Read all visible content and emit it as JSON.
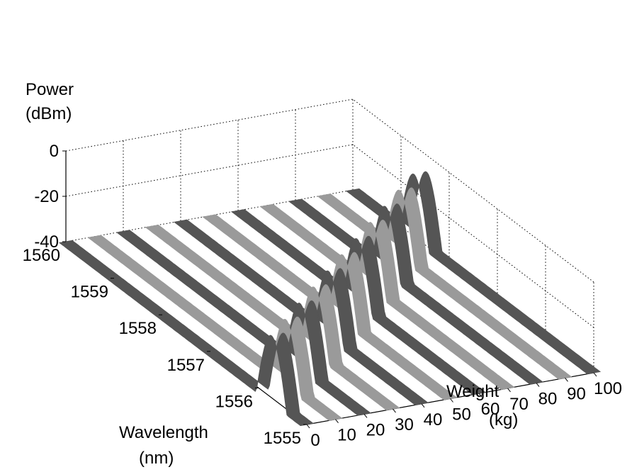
{
  "chart_data": {
    "type": "waterfall-3d",
    "title": "",
    "zlabel": [
      "Power",
      "(dBm)"
    ],
    "xlabel": [
      "Weight",
      "(kg)"
    ],
    "ylabel": [
      "Wavelength",
      "(nm)"
    ],
    "x_ticks": [
      "0",
      "10",
      "20",
      "30",
      "40",
      "50",
      "60",
      "70",
      "80",
      "90",
      "100"
    ],
    "y_ticks": [
      "1555",
      "1556",
      "1557",
      "1558",
      "1559",
      "1560"
    ],
    "z_ticks": [
      "-40",
      "-20",
      "0"
    ],
    "xlim": [
      0,
      100
    ],
    "ylim": [
      1555,
      1560
    ],
    "zlim": [
      -40,
      0
    ],
    "grid": true,
    "baseline_dbm": -40,
    "series": [
      {
        "weight": 0,
        "peak_wavelength": 1555.6,
        "peak_dbm": -10,
        "color": "#555555"
      },
      {
        "weight": 10,
        "peak_wavelength": 1555.9,
        "peak_dbm": -10,
        "color": "#9a9a9a"
      },
      {
        "weight": 20,
        "peak_wavelength": 1556.2,
        "peak_dbm": -10,
        "color": "#555555"
      },
      {
        "weight": 30,
        "peak_wavelength": 1556.5,
        "peak_dbm": -10,
        "color": "#9a9a9a"
      },
      {
        "weight": 40,
        "peak_wavelength": 1556.8,
        "peak_dbm": -10,
        "color": "#555555"
      },
      {
        "weight": 50,
        "peak_wavelength": 1557.1,
        "peak_dbm": -10,
        "color": "#9a9a9a"
      },
      {
        "weight": 60,
        "peak_wavelength": 1557.4,
        "peak_dbm": -10,
        "color": "#555555"
      },
      {
        "weight": 70,
        "peak_wavelength": 1557.7,
        "peak_dbm": -10,
        "color": "#9a9a9a"
      },
      {
        "weight": 80,
        "peak_wavelength": 1558.0,
        "peak_dbm": -10,
        "color": "#555555"
      },
      {
        "weight": 90,
        "peak_wavelength": 1558.3,
        "peak_dbm": -10,
        "color": "#9a9a9a"
      },
      {
        "weight": 100,
        "peak_wavelength": 1558.6,
        "peak_dbm": -10,
        "color": "#555555"
      }
    ]
  }
}
